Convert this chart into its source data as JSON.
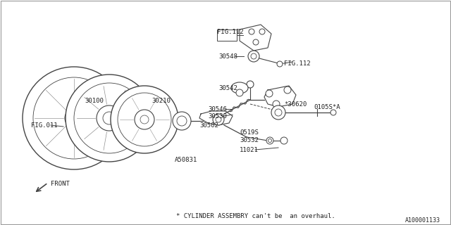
{
  "bg_color": "#ffffff",
  "line_color": "#444444",
  "text_color": "#222222",
  "footer_note": "* CYLINDER ASSEMBRY can't be  an overhaul.",
  "part_number": "A100001133",
  "font_size": 6.5,
  "diagram_font": "monospace",
  "labels": {
    "FIG112_top": "FIG.112",
    "FIG112_bottom": "FIG.112",
    "FIG011": "FIG.011",
    "p30548": "30548",
    "p30542": "30542",
    "p30620": "*30620",
    "p30546": "30546",
    "p30210": "30210",
    "p30530": "30530",
    "p30502": "30502",
    "p30100": "30100",
    "p0519S": "0519S",
    "p30532": "30532",
    "p11021": "11021",
    "p0105SA": "0105S*A",
    "pA50831": "A50831",
    "FRONT": "FRONT"
  }
}
